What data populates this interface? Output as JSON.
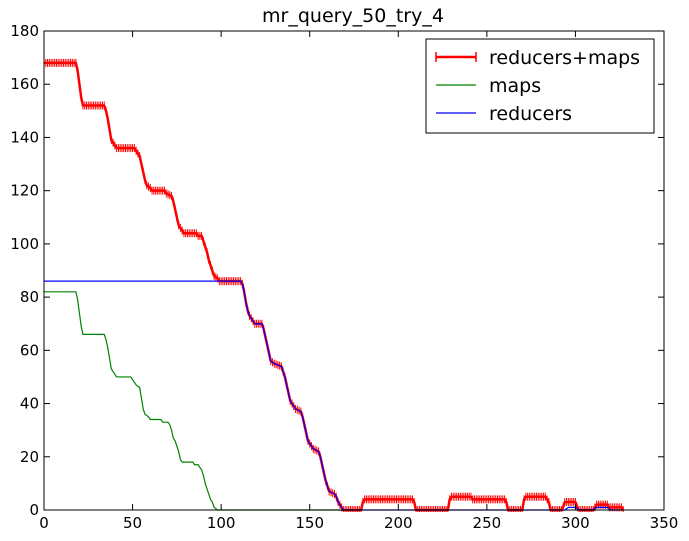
{
  "chart_data": {
    "type": "line",
    "title": "mr_query_50_try_4",
    "xlabel": "",
    "ylabel": "",
    "xlim": [
      0,
      350
    ],
    "ylim": [
      0,
      180
    ],
    "xticks": [
      0,
      50,
      100,
      150,
      200,
      250,
      300,
      350
    ],
    "yticks": [
      0,
      20,
      40,
      60,
      80,
      100,
      120,
      140,
      160,
      180
    ],
    "grid": false,
    "legend_position": "top-right",
    "series": [
      {
        "name": "reducers+maps",
        "color": "#ff0000",
        "marker": "vertical-tick",
        "points": [
          [
            0,
            168
          ],
          [
            18,
            168
          ],
          [
            19,
            165
          ],
          [
            20,
            160
          ],
          [
            21,
            155
          ],
          [
            22,
            152
          ],
          [
            34,
            152
          ],
          [
            35,
            150
          ],
          [
            36,
            147
          ],
          [
            37,
            143
          ],
          [
            38,
            139
          ],
          [
            40,
            137
          ],
          [
            41,
            136
          ],
          [
            51,
            136
          ],
          [
            52,
            135
          ],
          [
            54,
            133
          ],
          [
            55,
            130
          ],
          [
            56,
            127
          ],
          [
            57,
            124
          ],
          [
            58,
            122
          ],
          [
            60,
            121
          ],
          [
            61,
            120
          ],
          [
            68,
            120
          ],
          [
            69,
            119
          ],
          [
            72,
            118
          ],
          [
            73,
            116
          ],
          [
            74,
            113
          ],
          [
            75,
            110
          ],
          [
            76,
            107
          ],
          [
            78,
            105
          ],
          [
            79,
            104
          ],
          [
            86,
            104
          ],
          [
            87,
            103
          ],
          [
            89,
            103
          ],
          [
            90,
            101
          ],
          [
            91,
            99
          ],
          [
            92,
            97
          ],
          [
            93,
            94
          ],
          [
            94,
            92
          ],
          [
            95,
            90
          ],
          [
            96,
            88
          ],
          [
            98,
            87
          ],
          [
            99,
            86
          ],
          [
            111,
            86
          ],
          [
            112,
            85
          ],
          [
            113,
            82
          ],
          [
            114,
            78
          ],
          [
            115,
            75
          ],
          [
            116,
            73
          ],
          [
            118,
            71
          ],
          [
            119,
            70
          ],
          [
            123,
            70
          ],
          [
            124,
            68
          ],
          [
            125,
            65
          ],
          [
            126,
            62
          ],
          [
            127,
            59
          ],
          [
            128,
            56
          ],
          [
            130,
            55
          ],
          [
            134,
            54
          ],
          [
            135,
            52
          ],
          [
            136,
            50
          ],
          [
            137,
            47
          ],
          [
            138,
            44
          ],
          [
            139,
            41
          ],
          [
            141,
            39
          ],
          [
            142,
            38
          ],
          [
            145,
            37
          ],
          [
            146,
            35
          ],
          [
            147,
            32
          ],
          [
            148,
            29
          ],
          [
            149,
            26
          ],
          [
            151,
            24
          ],
          [
            152,
            23
          ],
          [
            155,
            22
          ],
          [
            156,
            20
          ],
          [
            157,
            17
          ],
          [
            158,
            14
          ],
          [
            159,
            11
          ],
          [
            160,
            9
          ],
          [
            161,
            7
          ],
          [
            164,
            6
          ],
          [
            165,
            5
          ],
          [
            166,
            3
          ],
          [
            167,
            2
          ],
          [
            168,
            1
          ],
          [
            169,
            0
          ],
          [
            179,
            0
          ],
          [
            180,
            3
          ],
          [
            181,
            4
          ],
          [
            208,
            4
          ],
          [
            209,
            3
          ],
          [
            210,
            0
          ],
          [
            228,
            0
          ],
          [
            229,
            4
          ],
          [
            230,
            5
          ],
          [
            241,
            5
          ],
          [
            242,
            4
          ],
          [
            260,
            4
          ],
          [
            261,
            3
          ],
          [
            262,
            0
          ],
          [
            270,
            0
          ],
          [
            271,
            4
          ],
          [
            272,
            5
          ],
          [
            283,
            5
          ],
          [
            284,
            4
          ],
          [
            285,
            3
          ],
          [
            286,
            0
          ],
          [
            292,
            0
          ],
          [
            293,
            1
          ],
          [
            294,
            3
          ],
          [
            300,
            3
          ],
          [
            301,
            1
          ],
          [
            302,
            0
          ],
          [
            310,
            0
          ],
          [
            311,
            1
          ],
          [
            312,
            2
          ],
          [
            318,
            2
          ],
          [
            319,
            1
          ],
          [
            326,
            1
          ],
          [
            327,
            0
          ]
        ]
      },
      {
        "name": "maps",
        "color": "#008000",
        "points": [
          [
            0,
            82
          ],
          [
            18,
            82
          ],
          [
            19,
            79
          ],
          [
            20,
            74
          ],
          [
            21,
            69
          ],
          [
            22,
            66
          ],
          [
            34,
            66
          ],
          [
            35,
            64
          ],
          [
            36,
            61
          ],
          [
            37,
            57
          ],
          [
            38,
            53
          ],
          [
            40,
            51
          ],
          [
            41,
            50
          ],
          [
            49,
            50
          ],
          [
            50,
            49
          ],
          [
            52,
            47
          ],
          [
            54,
            46
          ],
          [
            55,
            42
          ],
          [
            56,
            38
          ],
          [
            57,
            36
          ],
          [
            59,
            35
          ],
          [
            60,
            34
          ],
          [
            66,
            34
          ],
          [
            67,
            33
          ],
          [
            70,
            33
          ],
          [
            71,
            32
          ],
          [
            72,
            30
          ],
          [
            73,
            27
          ],
          [
            74,
            26
          ],
          [
            75,
            24
          ],
          [
            76,
            22
          ],
          [
            77,
            19
          ],
          [
            78,
            18
          ],
          [
            84,
            18
          ],
          [
            85,
            17
          ],
          [
            87,
            17
          ],
          [
            88,
            16
          ],
          [
            89,
            15
          ],
          [
            90,
            13
          ],
          [
            91,
            10
          ],
          [
            92,
            8
          ],
          [
            93,
            6
          ],
          [
            94,
            4
          ],
          [
            95,
            3
          ],
          [
            96,
            1
          ],
          [
            97,
            0.5
          ],
          [
            98,
            0
          ],
          [
            100,
            0
          ],
          [
            172,
            0
          ]
        ]
      },
      {
        "name": "reducers",
        "color": "#0000ff",
        "points": [
          [
            0,
            86
          ],
          [
            111,
            86
          ],
          [
            112,
            85
          ],
          [
            113,
            82
          ],
          [
            114,
            78
          ],
          [
            115,
            75
          ],
          [
            116,
            73
          ],
          [
            118,
            71
          ],
          [
            119,
            70
          ],
          [
            123,
            70
          ],
          [
            124,
            68
          ],
          [
            125,
            65
          ],
          [
            126,
            62
          ],
          [
            127,
            59
          ],
          [
            128,
            56
          ],
          [
            130,
            55
          ],
          [
            134,
            54
          ],
          [
            135,
            52
          ],
          [
            136,
            50
          ],
          [
            137,
            47
          ],
          [
            138,
            44
          ],
          [
            139,
            41
          ],
          [
            141,
            39
          ],
          [
            142,
            38
          ],
          [
            145,
            37
          ],
          [
            146,
            35
          ],
          [
            147,
            32
          ],
          [
            148,
            29
          ],
          [
            149,
            26
          ],
          [
            151,
            24
          ],
          [
            152,
            23
          ],
          [
            155,
            22
          ],
          [
            156,
            20
          ],
          [
            157,
            17
          ],
          [
            158,
            14
          ],
          [
            159,
            11
          ],
          [
            160,
            9
          ],
          [
            161,
            7
          ],
          [
            164,
            6
          ],
          [
            165,
            5
          ],
          [
            166,
            3
          ],
          [
            167,
            2
          ],
          [
            168,
            1
          ],
          [
            169,
            0
          ],
          [
            270,
            0
          ],
          [
            294,
            0
          ],
          [
            296,
            1
          ],
          [
            300,
            1
          ],
          [
            302,
            0
          ],
          [
            310,
            0
          ],
          [
            312,
            1
          ],
          [
            318,
            1
          ],
          [
            320,
            0
          ],
          [
            326,
            0
          ]
        ]
      }
    ]
  }
}
